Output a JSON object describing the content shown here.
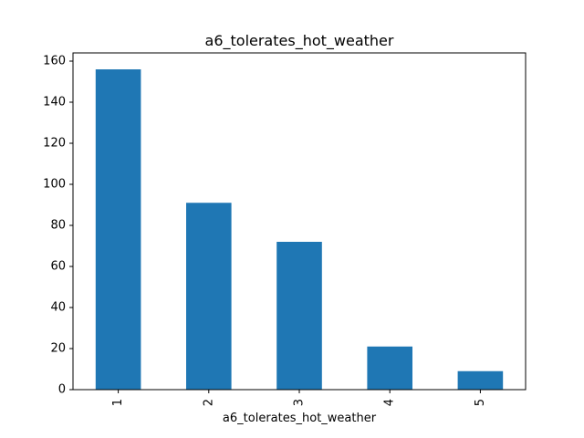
{
  "chart_data": {
    "type": "bar",
    "title": "a6_tolerates_hot_weather",
    "xlabel": "a6_tolerates_hot_weather",
    "ylabel": "",
    "categories": [
      "1",
      "2",
      "3",
      "4",
      "5"
    ],
    "values": [
      156,
      91,
      72,
      21,
      9
    ],
    "ylim": [
      0,
      164
    ],
    "yticks": [
      "0",
      "20",
      "40",
      "60",
      "80",
      "100",
      "120",
      "140",
      "160"
    ],
    "grid": false,
    "legend": "none",
    "bar_color": "#1f77b4",
    "x_tick_rotation": "vertical"
  }
}
